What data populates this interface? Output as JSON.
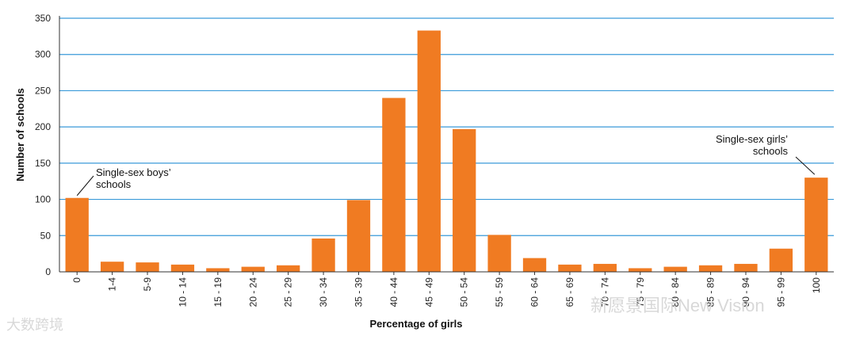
{
  "chart_data": {
    "type": "bar",
    "xlabel": "Percentage of girls",
    "ylabel": "Number of schools",
    "ylim": [
      0,
      350
    ],
    "yticks": [
      0,
      50,
      100,
      150,
      200,
      250,
      300,
      350
    ],
    "grid": true,
    "categories": [
      "0",
      "1-4",
      "5-9",
      "10 - 14",
      "15 - 19",
      "20 - 24",
      "25 - 29",
      "30 - 34",
      "35 - 39",
      "40 - 44",
      "45 - 49",
      "50 - 54",
      "55 - 59",
      "60 - 64",
      "65 - 69",
      "70 - 74",
      "75 - 79",
      "80 - 84",
      "85 - 89",
      "90 - 94",
      "95 - 99",
      "100"
    ],
    "values": [
      102,
      14,
      13,
      10,
      5,
      7,
      9,
      46,
      99,
      240,
      333,
      197,
      51,
      19,
      10,
      11,
      5,
      7,
      9,
      11,
      32,
      130
    ],
    "colors": {
      "bar": "#f07b22",
      "grid": "#3a9ad9",
      "axis": "#333333"
    },
    "annotations": [
      {
        "text_lines": [
          "Single-sex boys’",
          "schools"
        ],
        "target_category": "0"
      },
      {
        "text_lines": [
          "Single-sex girls’",
          "schools"
        ],
        "target_category": "100"
      }
    ]
  },
  "watermarks": {
    "left": "大数跨境",
    "right": "新愿景国际New Vision"
  }
}
